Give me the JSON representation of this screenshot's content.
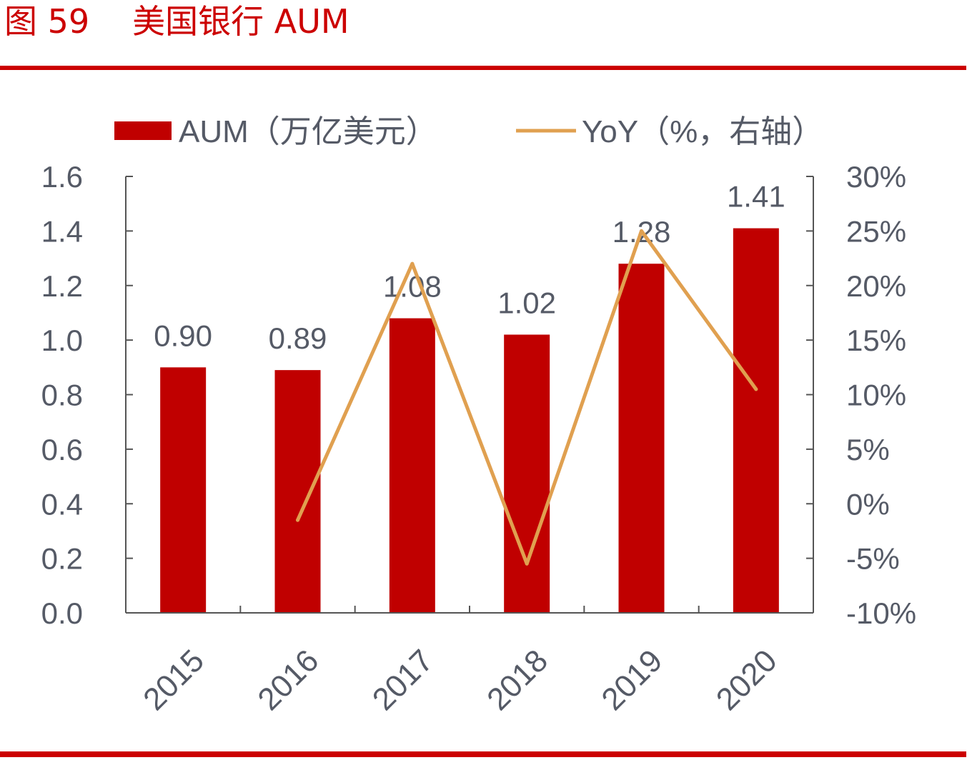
{
  "figure": {
    "label": "图 59",
    "title": "美国银行 AUM"
  },
  "chart_data": {
    "type": "bar",
    "categories": [
      "2015",
      "2016",
      "2017",
      "2018",
      "2019",
      "2020"
    ],
    "series": [
      {
        "name": "AUM（万亿美元）",
        "type": "bar",
        "axis": "left",
        "color": "#c00000",
        "values": [
          0.9,
          0.89,
          1.08,
          1.02,
          1.28,
          1.41
        ],
        "data_labels": [
          "0.90",
          "0.89",
          "1.08",
          "1.02",
          "1.28",
          "1.41"
        ]
      },
      {
        "name": "YoY（%，右轴）",
        "type": "line",
        "axis": "right",
        "color": "#e0a050",
        "values": [
          null,
          -1.5,
          22,
          -5.5,
          25,
          10.5
        ]
      }
    ],
    "y_left": {
      "ylim": [
        0,
        1.6
      ],
      "ticks": [
        "0.0",
        "0.2",
        "0.4",
        "0.6",
        "0.8",
        "1.0",
        "1.2",
        "1.4",
        "1.6"
      ]
    },
    "y_right": {
      "ylim": [
        -10,
        30
      ],
      "ticks": [
        "-10%",
        "-5%",
        "0%",
        "5%",
        "10%",
        "15%",
        "20%",
        "25%",
        "30%"
      ]
    },
    "legend_position": "top",
    "grid": false
  }
}
